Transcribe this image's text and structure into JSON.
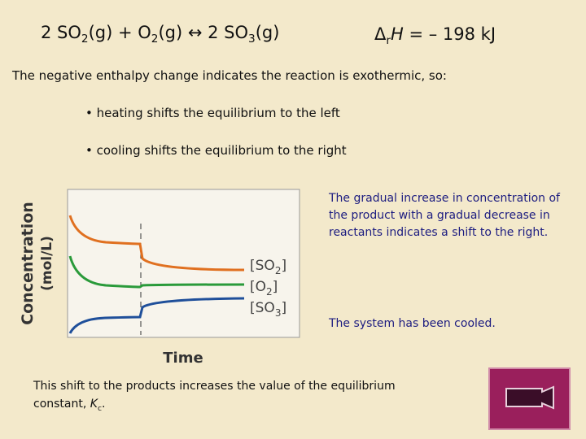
{
  "equation": [
    "2 SO",
    "2",
    "(g) + O",
    "2",
    "(g) ↔ 2 SO",
    "3",
    "(g)"
  ],
  "enthalpy": [
    "Δ",
    "r",
    "H",
    " = – 198 kJ"
  ],
  "intro": "The negative enthalpy change indicates the reaction is exothermic, so:",
  "bullets": [
    "heating shifts the equilibrium to the left",
    "cooling shifts the equilibrium to the right"
  ],
  "figure": {
    "y_label": [
      "Concentration",
      "(mol/L)"
    ],
    "x_label": "Time",
    "legend": [
      [
        "[SO",
        "2",
        "]"
      ],
      [
        "[O",
        "2",
        "]"
      ],
      [
        "[SO",
        "3",
        "]"
      ]
    ]
  },
  "notes": [
    "The gradual increase in concentration of the product with a gradual decrease in reactants indicates a shift to the right.",
    "The system has been cooled."
  ],
  "conclusion": [
    "This shift to the products increases the value of the equilibrium constant, ",
    "K",
    "c",
    "."
  ]
}
